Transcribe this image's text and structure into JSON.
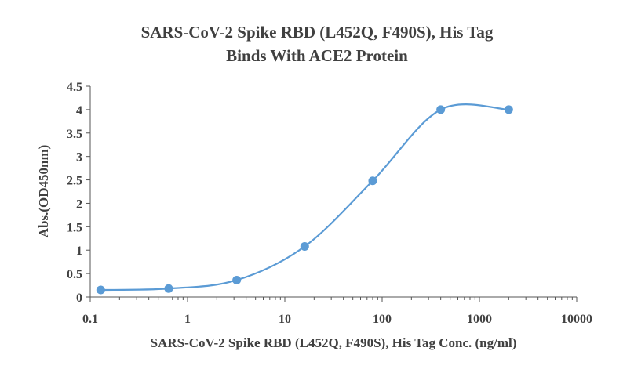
{
  "chart_data": {
    "type": "scatter",
    "title_lines": [
      "SARS-CoV-2 Spike RBD (L452Q, F490S), His Tag",
      "Binds With ACE2 Protein"
    ],
    "xlabel": "SARS-CoV-2 Spike RBD (L452Q, F490S), His Tag Conc. (ng/ml)",
    "ylabel": "Abs.(OD450nm)",
    "x_scale": "log",
    "xlim": [
      0.1,
      10000
    ],
    "ylim": [
      0,
      4.5
    ],
    "x_ticks": [
      0.1,
      1,
      10,
      100,
      1000,
      10000
    ],
    "x_tick_labels": [
      "0.1",
      "1",
      "10",
      "100",
      "1000",
      "10000"
    ],
    "y_ticks": [
      0,
      0.5,
      1,
      1.5,
      2,
      2.5,
      3,
      3.5,
      4,
      4.5
    ],
    "y_tick_labels": [
      "0",
      "0.5",
      "1",
      "1.5",
      "2",
      "2.5",
      "3",
      "3.5",
      "4",
      "4.5"
    ],
    "grid": false,
    "legend": "none",
    "series": [
      {
        "x": [
          0.128,
          0.64,
          3.2,
          16,
          80,
          400,
          2000
        ],
        "y": [
          0.15,
          0.18,
          0.36,
          1.08,
          2.48,
          4.0,
          4.0
        ],
        "color": "#5b9bd5",
        "fit_curve": true
      }
    ]
  }
}
